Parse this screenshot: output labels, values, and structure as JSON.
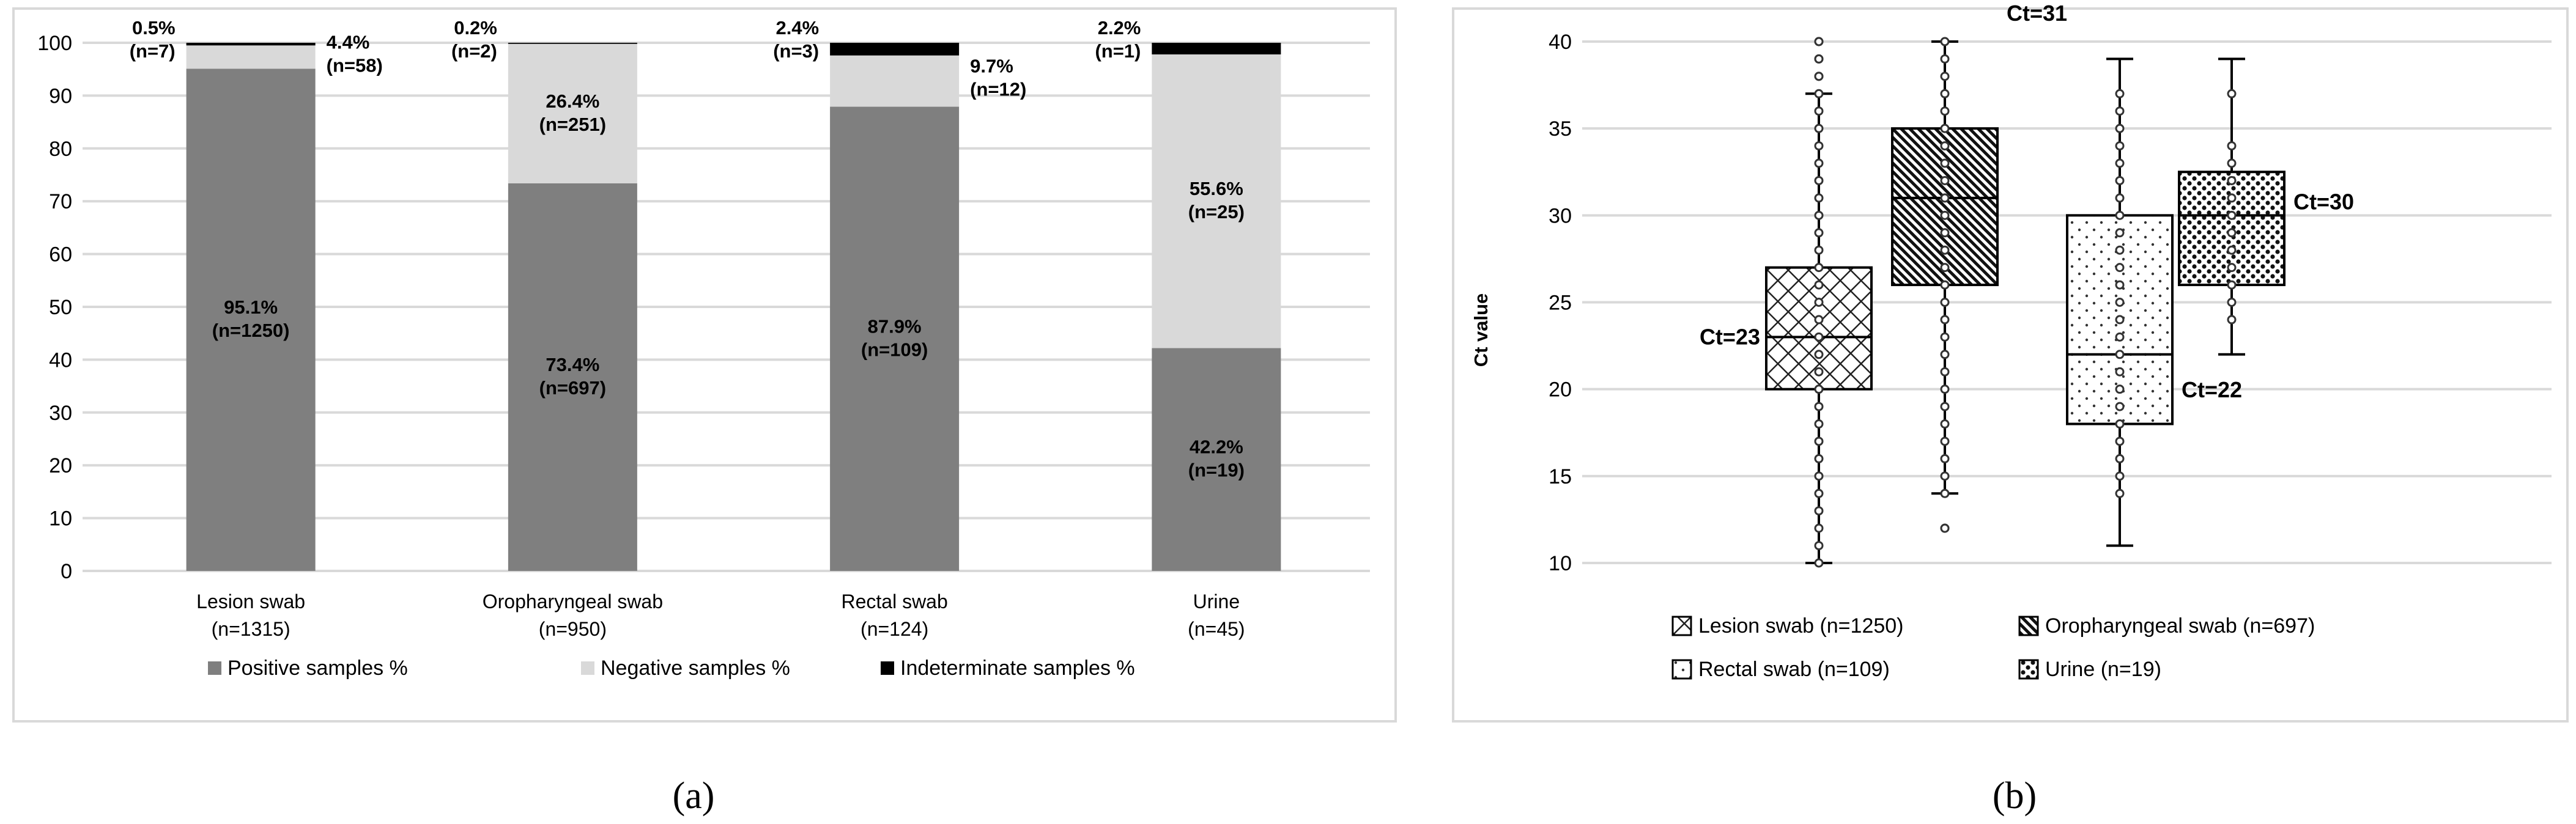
{
  "chart_data": [
    {
      "type": "bar",
      "stacked": true,
      "panel_label": "(a)",
      "categories": [
        "Lesion swab",
        "Oropharyngeal swab",
        "Rectal swab",
        "Urine"
      ],
      "category_counts": [
        "(n=1315)",
        "(n=950)",
        "(n=124)",
        "(n=45)"
      ],
      "series": [
        {
          "name": "Positive samples %",
          "color": "#7f7f7f",
          "values": [
            95.1,
            73.4,
            87.9,
            42.2
          ],
          "labels": [
            "95.1%",
            "73.4%",
            "87.9%",
            "42.2%"
          ],
          "counts": [
            "(n=1250)",
            "(n=697)",
            "(n=109)",
            "(n=19)"
          ]
        },
        {
          "name": "Negative samples %",
          "color": "#d9d9d9",
          "values": [
            4.4,
            26.4,
            9.7,
            55.6
          ],
          "labels": [
            "4.4%",
            "26.4%",
            "9.7%",
            "55.6%"
          ],
          "counts": [
            "(n=58)",
            "(n=251)",
            "(n=12)",
            "(n=25)"
          ]
        },
        {
          "name": "Indeterminate samples %",
          "color": "#000000",
          "values": [
            0.5,
            0.2,
            2.4,
            2.2
          ],
          "labels": [
            "0.5%",
            "0.2%",
            "2.4%",
            "2.2%"
          ],
          "counts": [
            "(n=7)",
            "(n=2)",
            "(n=3)",
            "(n=1)"
          ]
        }
      ],
      "ylim": [
        0,
        100
      ],
      "yticks": [
        "0",
        "10",
        "20",
        "30",
        "40",
        "50",
        "60",
        "70",
        "80",
        "90",
        "100"
      ],
      "grid": true,
      "legend": "bottom"
    },
    {
      "type": "boxplot",
      "panel_label": "(b)",
      "ylabel": "Ct value",
      "ylim": [
        10,
        40
      ],
      "yticks": [
        "10",
        "15",
        "20",
        "25",
        "30",
        "35",
        "40"
      ],
      "grid": true,
      "legend": "bottom",
      "series": [
        {
          "name": "Lesion swab (n=1250)",
          "pattern": "crosshatch",
          "min": 10,
          "q1": 20,
          "median": 23,
          "q3": 27,
          "max": 37,
          "outliers": [
            38,
            39,
            40
          ],
          "points": [
            10,
            11,
            12,
            13,
            14,
            15,
            16,
            17,
            18,
            19,
            20,
            21,
            22,
            23,
            24,
            25,
            26,
            27,
            28,
            29,
            30,
            31,
            32,
            33,
            34,
            35,
            36,
            37,
            38,
            39,
            40
          ],
          "median_label": "Ct=23"
        },
        {
          "name": "Oropharyngeal swab (n=697)",
          "pattern": "diagonal",
          "min": 14,
          "q1": 26,
          "median": 31,
          "q3": 35,
          "max": 40,
          "outliers": [
            12
          ],
          "points": [
            12,
            14,
            15,
            16,
            17,
            18,
            19,
            20,
            21,
            22,
            23,
            24,
            25,
            26,
            27,
            28,
            29,
            30,
            31,
            32,
            33,
            34,
            35,
            36,
            37,
            38,
            39,
            40
          ],
          "median_label": "Ct=31"
        },
        {
          "name": "Rectal swab (n=109)",
          "pattern": "sparse-dots",
          "min": 11,
          "q1": 18,
          "median": 22,
          "q3": 30,
          "max": 39,
          "outliers": [],
          "points": [
            14,
            15,
            16,
            17,
            18,
            19,
            20,
            21,
            22,
            23,
            24,
            25,
            26,
            27,
            28,
            29,
            30,
            31,
            32,
            33,
            34,
            35,
            36,
            37
          ],
          "median_label": "Ct=22"
        },
        {
          "name": "Urine (n=19)",
          "pattern": "dense-dots",
          "min": 22,
          "q1": 26,
          "median": 30,
          "q3": 32.5,
          "max": 39,
          "outliers": [],
          "points": [
            24,
            25,
            26,
            27,
            28,
            29,
            30,
            31,
            32,
            33,
            34,
            37
          ],
          "median_label": "Ct=30"
        }
      ]
    }
  ]
}
